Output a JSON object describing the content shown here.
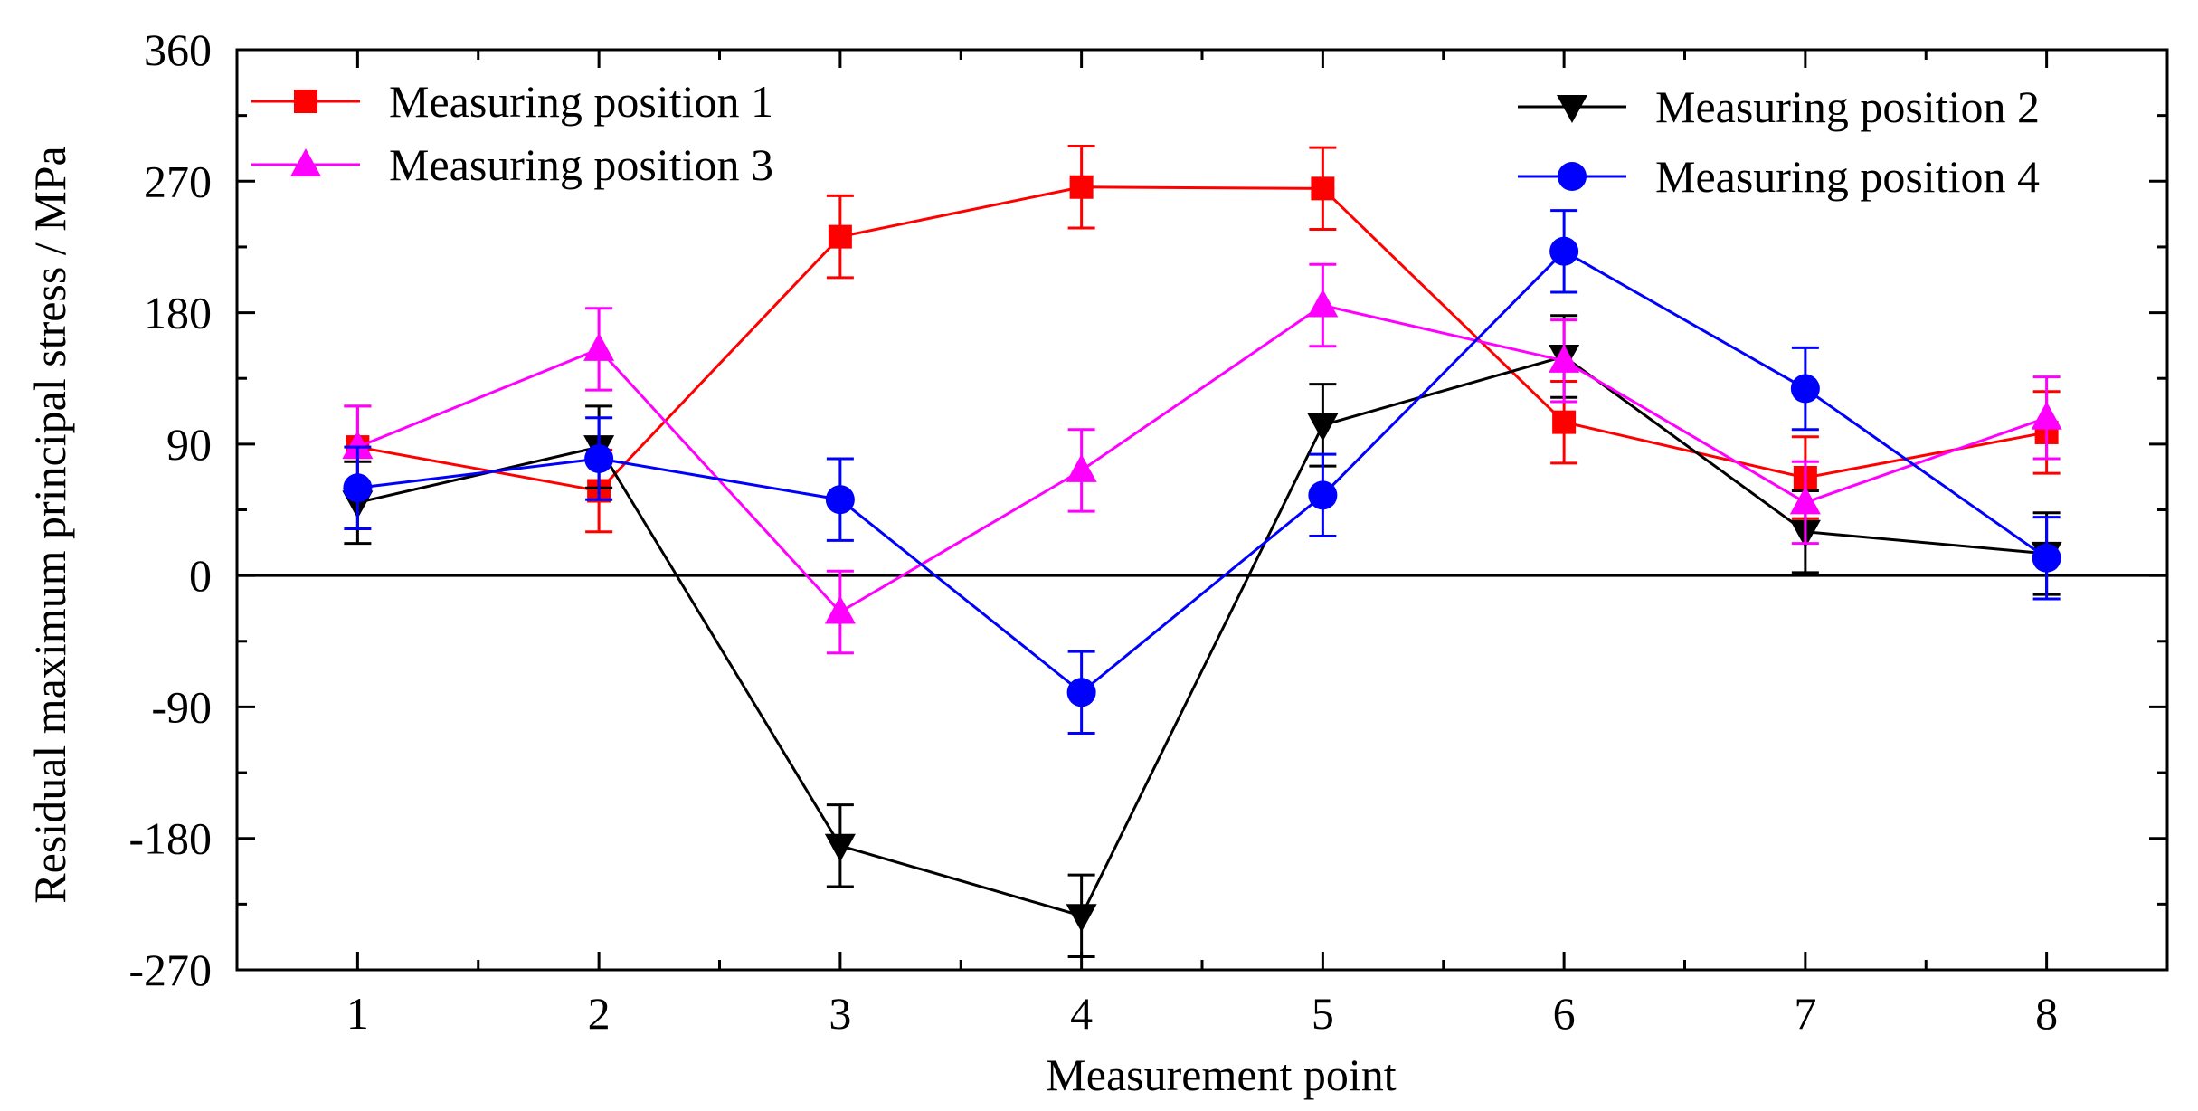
{
  "chart_data": {
    "type": "line",
    "xlabel": "Measurement point",
    "ylabel": "Residual maximum principal stress / MPa",
    "x": [
      1,
      2,
      3,
      4,
      5,
      6,
      7,
      8
    ],
    "xlim": [
      0.5,
      8.5
    ],
    "ylim": [
      -270,
      360
    ],
    "yticks": [
      -270,
      -180,
      -90,
      0,
      90,
      180,
      270,
      360
    ],
    "xticks": [
      1,
      2,
      3,
      4,
      5,
      6,
      7,
      8
    ],
    "zero_line": true,
    "grid": false,
    "legend_position": "top",
    "series": [
      {
        "name": "Measuring position 1",
        "color": "#ff0000",
        "marker": "square",
        "values": [
          88,
          58,
          232,
          266,
          265,
          105,
          67,
          98
        ],
        "errors": [
          28,
          28,
          28,
          28,
          28,
          28,
          28,
          28
        ]
      },
      {
        "name": "Measuring position 2",
        "color": "#000000",
        "marker": "triangle-down",
        "values": [
          50,
          88,
          -185,
          -233,
          103,
          150,
          30,
          15
        ],
        "errors": [
          28,
          28,
          28,
          28,
          28,
          28,
          28,
          28
        ]
      },
      {
        "name": "Measuring position 3",
        "color": "#ff00ff",
        "marker": "triangle-up",
        "values": [
          88,
          155,
          -25,
          72,
          185,
          147,
          50,
          108
        ],
        "errors": [
          28,
          28,
          28,
          28,
          28,
          28,
          28,
          28
        ]
      },
      {
        "name": "Measuring position 4",
        "color": "#0000ff",
        "marker": "circle",
        "values": [
          60,
          80,
          52,
          -80,
          55,
          222,
          128,
          12
        ],
        "errors": [
          28,
          28,
          28,
          28,
          28,
          28,
          28,
          28
        ]
      }
    ]
  }
}
